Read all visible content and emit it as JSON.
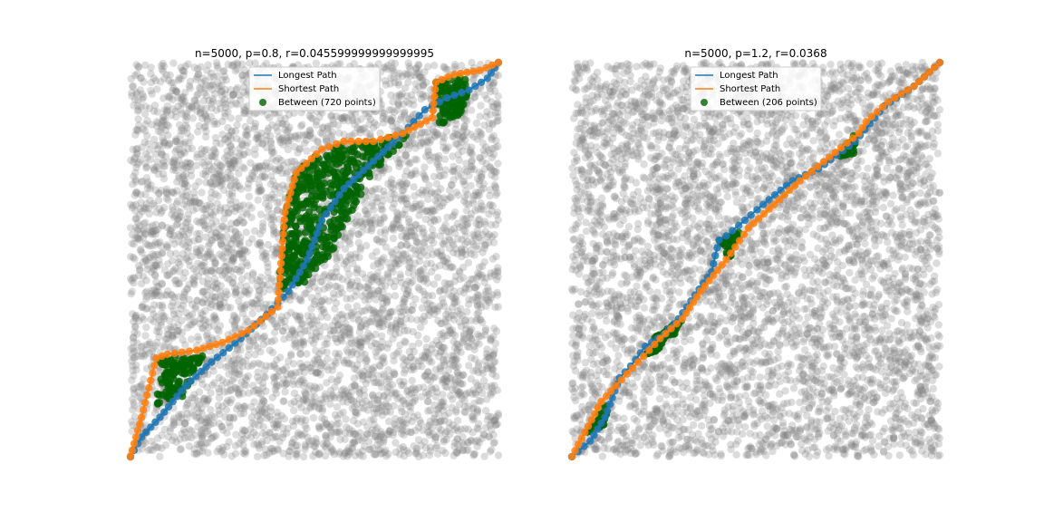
{
  "colors": {
    "background_points": "#808080",
    "longest": "#1f77b4",
    "shortest": "#ff7f0e",
    "between": "#006400"
  },
  "chart_data": [
    {
      "type": "scatter",
      "title": "n=5000, p=0.8, r=0.045599999999999995",
      "xlim": [
        0,
        1
      ],
      "ylim": [
        0,
        1
      ],
      "grid": false,
      "axes_visible": false,
      "legend_position": "top-center",
      "legend": [
        "Longest Path",
        "Shortest Path",
        "Between (720 points)"
      ],
      "n_points": 5000,
      "between_count": 720,
      "longest_path": [
        [
          0,
          0
        ],
        [
          0.03,
          0.05
        ],
        [
          0.08,
          0.1
        ],
        [
          0.15,
          0.18
        ],
        [
          0.22,
          0.24
        ],
        [
          0.3,
          0.3
        ],
        [
          0.37,
          0.36
        ],
        [
          0.43,
          0.42
        ],
        [
          0.48,
          0.5
        ],
        [
          0.52,
          0.6
        ],
        [
          0.58,
          0.68
        ],
        [
          0.66,
          0.75
        ],
        [
          0.74,
          0.82
        ],
        [
          0.8,
          0.88
        ],
        [
          0.86,
          0.91
        ],
        [
          0.92,
          0.93
        ],
        [
          0.97,
          0.96
        ],
        [
          1,
          1
        ]
      ],
      "shortest_path": [
        [
          0,
          0
        ],
        [
          0.03,
          0.1
        ],
        [
          0.07,
          0.25
        ],
        [
          0.1,
          0.26
        ],
        [
          0.18,
          0.27
        ],
        [
          0.25,
          0.29
        ],
        [
          0.32,
          0.32
        ],
        [
          0.4,
          0.38
        ],
        [
          0.42,
          0.62
        ],
        [
          0.45,
          0.72
        ],
        [
          0.52,
          0.78
        ],
        [
          0.58,
          0.8
        ],
        [
          0.66,
          0.8
        ],
        [
          0.74,
          0.82
        ],
        [
          0.82,
          0.86
        ],
        [
          0.83,
          0.95
        ],
        [
          0.88,
          0.97
        ],
        [
          0.95,
          0.98
        ],
        [
          1,
          1
        ]
      ],
      "between_regions": [
        {
          "polygon": [
            [
              0.08,
              0.25
            ],
            [
              0.2,
              0.26
            ],
            [
              0.14,
              0.15
            ],
            [
              0.07,
              0.12
            ]
          ],
          "count": 110
        },
        {
          "polygon": [
            [
              0.4,
              0.42
            ],
            [
              0.42,
              0.62
            ],
            [
              0.45,
              0.72
            ],
            [
              0.52,
              0.78
            ],
            [
              0.66,
              0.8
            ],
            [
              0.76,
              0.82
            ],
            [
              0.66,
              0.72
            ],
            [
              0.6,
              0.62
            ],
            [
              0.55,
              0.52
            ],
            [
              0.47,
              0.44
            ]
          ],
          "count": 500
        },
        {
          "polygon": [
            [
              0.83,
              0.95
            ],
            [
              0.84,
              0.84
            ],
            [
              0.9,
              0.87
            ],
            [
              0.93,
              0.97
            ]
          ],
          "count": 110
        }
      ]
    },
    {
      "type": "scatter",
      "title": "n=5000, p=1.2, r=0.0368",
      "xlim": [
        0,
        1
      ],
      "ylim": [
        0,
        1
      ],
      "grid": false,
      "axes_visible": false,
      "legend_position": "top-center",
      "legend": [
        "Longest Path",
        "Shortest Path",
        "Between (206 points)"
      ],
      "n_points": 5000,
      "between_count": 206,
      "longest_path": [
        [
          0,
          0
        ],
        [
          0.05,
          0.04
        ],
        [
          0.09,
          0.1
        ],
        [
          0.13,
          0.2
        ],
        [
          0.16,
          0.23
        ],
        [
          0.2,
          0.28
        ],
        [
          0.25,
          0.31
        ],
        [
          0.29,
          0.35
        ],
        [
          0.38,
          0.47
        ],
        [
          0.4,
          0.55
        ],
        [
          0.42,
          0.56
        ],
        [
          0.47,
          0.6
        ],
        [
          0.52,
          0.64
        ],
        [
          0.6,
          0.7
        ],
        [
          0.67,
          0.73
        ],
        [
          0.77,
          0.8
        ],
        [
          0.85,
          0.89
        ],
        [
          0.93,
          0.94
        ],
        [
          1,
          1
        ]
      ],
      "shortest_path": [
        [
          0,
          0
        ],
        [
          0.08,
          0.14
        ],
        [
          0.12,
          0.18
        ],
        [
          0.18,
          0.24
        ],
        [
          0.24,
          0.3
        ],
        [
          0.3,
          0.35
        ],
        [
          0.35,
          0.42
        ],
        [
          0.42,
          0.5
        ],
        [
          0.48,
          0.58
        ],
        [
          0.55,
          0.64
        ],
        [
          0.62,
          0.7
        ],
        [
          0.7,
          0.76
        ],
        [
          0.78,
          0.82
        ],
        [
          0.8,
          0.85
        ],
        [
          0.86,
          0.9
        ],
        [
          0.93,
          0.94
        ],
        [
          1,
          1
        ]
      ],
      "between_regions": [
        {
          "polygon": [
            [
              0.04,
              0.06
            ],
            [
              0.1,
              0.14
            ],
            [
              0.09,
              0.08
            ]
          ],
          "count": 45
        },
        {
          "polygon": [
            [
              0.22,
              0.3
            ],
            [
              0.3,
              0.35
            ],
            [
              0.28,
              0.31
            ]
          ],
          "count": 45
        },
        {
          "polygon": [
            [
              0.4,
              0.55
            ],
            [
              0.46,
              0.58
            ],
            [
              0.43,
              0.5
            ]
          ],
          "count": 40
        },
        {
          "polygon": [
            [
              0.72,
              0.76
            ],
            [
              0.77,
              0.82
            ],
            [
              0.77,
              0.77
            ]
          ],
          "count": 40
        },
        {
          "polygon": [
            [
              0.2,
              0.26
            ],
            [
              0.25,
              0.3
            ],
            [
              0.24,
              0.27
            ]
          ],
          "count": 36
        }
      ]
    }
  ]
}
